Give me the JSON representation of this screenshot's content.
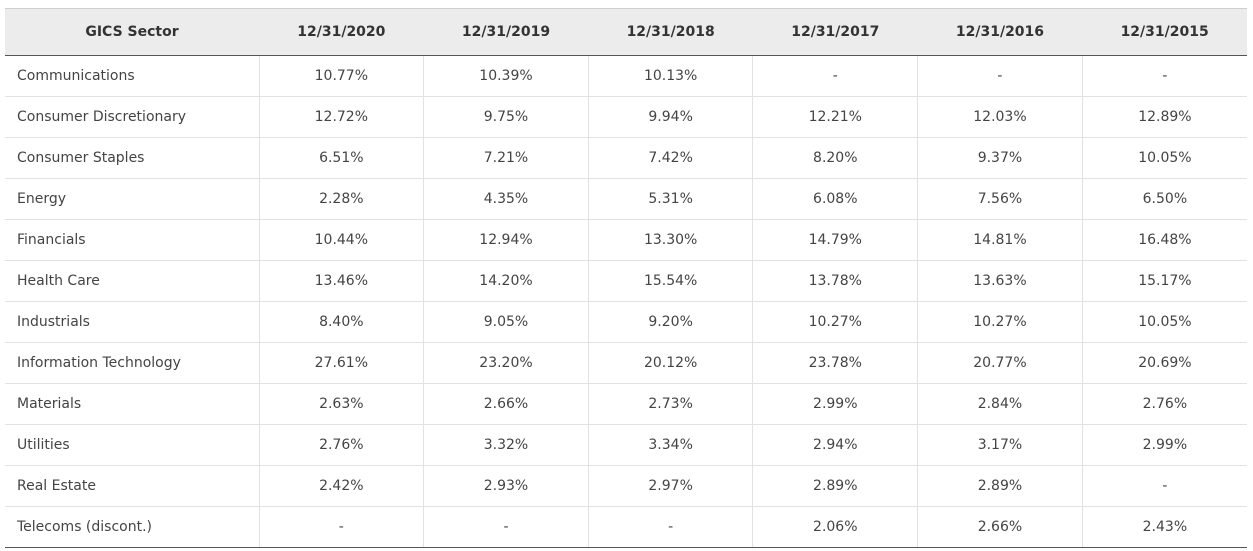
{
  "table": {
    "header": [
      "GICS Sector",
      "12/31/2020",
      "12/31/2019",
      "12/31/2018",
      "12/31/2017",
      "12/31/2016",
      "12/31/2015"
    ],
    "rows": [
      [
        "Communications",
        "10.77%",
        "10.39%",
        "10.13%",
        "-",
        "-",
        "-"
      ],
      [
        "Consumer Discretionary",
        "12.72%",
        "9.75%",
        "9.94%",
        "12.21%",
        "12.03%",
        "12.89%"
      ],
      [
        "Consumer Staples",
        "6.51%",
        "7.21%",
        "7.42%",
        "8.20%",
        "9.37%",
        "10.05%"
      ],
      [
        "Energy",
        "2.28%",
        "4.35%",
        "5.31%",
        "6.08%",
        "7.56%",
        "6.50%"
      ],
      [
        "Financials",
        "10.44%",
        "12.94%",
        "13.30%",
        "14.79%",
        "14.81%",
        "16.48%"
      ],
      [
        "Health Care",
        "13.46%",
        "14.20%",
        "15.54%",
        "13.78%",
        "13.63%",
        "15.17%"
      ],
      [
        "Industrials",
        "8.40%",
        "9.05%",
        "9.20%",
        "10.27%",
        "10.27%",
        "10.05%"
      ],
      [
        "Information Technology",
        "27.61%",
        "23.20%",
        "20.12%",
        "23.78%",
        "20.77%",
        "20.69%"
      ],
      [
        "Materials",
        "2.63%",
        "2.66%",
        "2.73%",
        "2.99%",
        "2.84%",
        "2.76%"
      ],
      [
        "Utilities",
        "2.76%",
        "3.32%",
        "3.34%",
        "2.94%",
        "3.17%",
        "2.99%"
      ],
      [
        "Real Estate",
        "2.42%",
        "2.93%",
        "2.97%",
        "2.89%",
        "2.89%",
        "-"
      ],
      [
        "Telecoms (discont.)",
        "-",
        "-",
        "-",
        "2.06%",
        "2.66%",
        "2.43%"
      ]
    ]
  }
}
